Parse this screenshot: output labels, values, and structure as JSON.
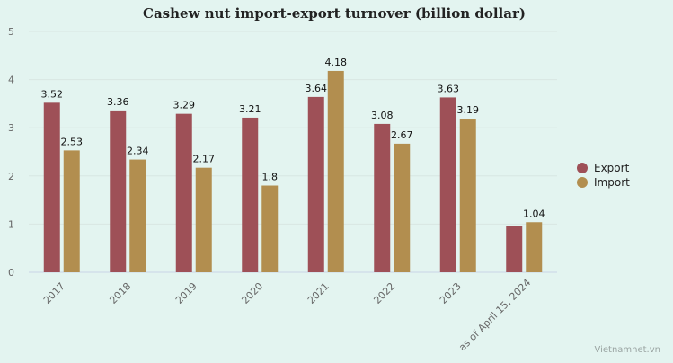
{
  "chart_data": {
    "type": "bar",
    "title": "Cashew nut import-export turnover (billion dollar)",
    "categories": [
      "2017",
      "2018",
      "2019",
      "2020",
      "2021",
      "2022",
      "2023",
      "as of April 15, 2024"
    ],
    "series": [
      {
        "name": "Export",
        "color": "#9e5057",
        "values": [
          3.52,
          3.36,
          3.29,
          3.21,
          3.64,
          3.08,
          3.63,
          0.97
        ],
        "labels": [
          "3.52",
          "3.36",
          "3.29",
          "3.21",
          "3.64",
          "3.08",
          "3.63",
          ""
        ]
      },
      {
        "name": "Import",
        "color": "#b28e4f",
        "values": [
          2.53,
          2.34,
          2.17,
          1.8,
          4.18,
          2.67,
          3.19,
          1.04
        ],
        "labels": [
          "2.53",
          "2.34",
          "2.17",
          "1.8",
          "4.18",
          "2.67",
          "3.19",
          "1.04"
        ]
      }
    ],
    "ylim": [
      0,
      5
    ],
    "yticks": [
      "0",
      "1",
      "2",
      "3",
      "4",
      "5"
    ],
    "legend_position": "right",
    "grid": true
  },
  "credit": "Vietnamnet.vn"
}
